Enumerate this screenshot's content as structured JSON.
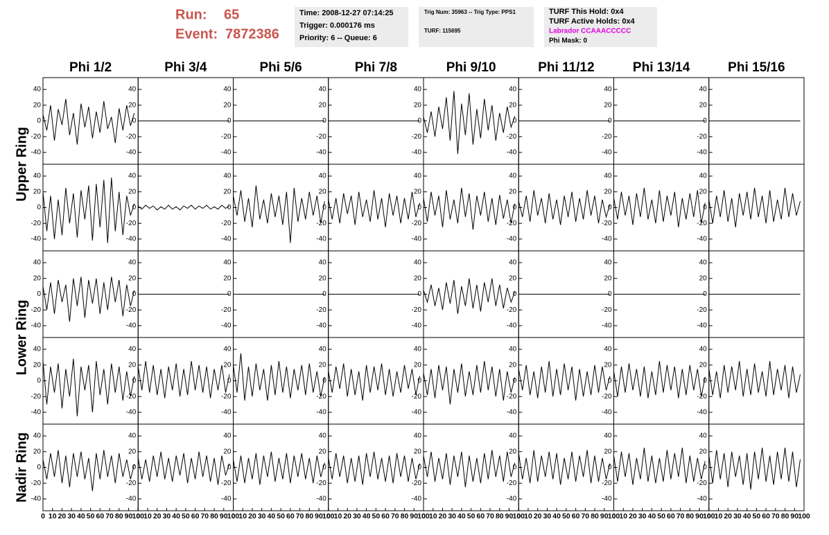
{
  "header": {
    "run_label": "Run:",
    "run": "65",
    "event_label": "Event:",
    "event": "7872386",
    "time": "Time: 2008-12-27 07:14:25",
    "trigger": "Trigger: 0.000176 ms",
    "priority": "Priority: 6 -- Queue: 6",
    "trig_num": "Trig Num: 35963 -- Trig Type: PPS1",
    "turf": "TURF: 115695",
    "turf_this_hold": "TURF This Hold: 0x4",
    "turf_active_holds": "TURF Active Holds: 0x4",
    "labrador": "Labrador CCAAACCCCC",
    "phi_mask": "Phi Mask: 0"
  },
  "chart_data": {
    "type": "line",
    "column_labels": [
      "Phi 1/2",
      "Phi 3/4",
      "Phi 5/6",
      "Phi 7/8",
      "Phi 9/10",
      "Phi 11/12",
      "Phi 13/14",
      "Phi 15/16"
    ],
    "ring_labels": [
      "Upper Ring",
      "Lower Ring",
      "Nadir Ring"
    ],
    "color": "#000000",
    "xlim": [
      0,
      100
    ],
    "xticks": [
      0,
      10,
      20,
      30,
      40,
      50,
      60,
      70,
      80,
      90,
      100
    ],
    "ylim": [
      -55,
      55
    ],
    "yticks": [
      -40,
      -20,
      0,
      20,
      40
    ],
    "x": [
      0,
      4,
      8,
      12,
      16,
      20,
      24,
      28,
      32,
      36,
      40,
      44,
      48,
      52,
      56,
      60,
      64,
      68,
      72,
      76,
      80,
      84,
      88,
      92,
      96
    ],
    "series": [
      {
        "values": [
          8,
          -12,
          20,
          -25,
          15,
          -5,
          28,
          -18,
          10,
          -30,
          22,
          -8,
          18,
          -22,
          12,
          -15,
          25,
          -10,
          5,
          -28,
          16,
          -12,
          20,
          -6,
          10
        ]
      },
      {
        "values": [
          0,
          0,
          0,
          0,
          0,
          0,
          0,
          0,
          0,
          0,
          0,
          0,
          0,
          0,
          0,
          0,
          0,
          0,
          0,
          0,
          0,
          0,
          0,
          0,
          0
        ]
      },
      {
        "values": [
          0,
          0,
          0,
          0,
          0,
          0,
          0,
          0,
          0,
          0,
          0,
          0,
          0,
          0,
          0,
          0,
          0,
          0,
          0,
          0,
          0,
          0,
          0,
          0,
          0
        ]
      },
      {
        "values": [
          0,
          0,
          0,
          0,
          0,
          0,
          0,
          0,
          0,
          0,
          0,
          0,
          0,
          0,
          0,
          0,
          0,
          0,
          0,
          0,
          0,
          0,
          0,
          0,
          0
        ]
      },
      {
        "values": [
          5,
          -15,
          12,
          -20,
          18,
          -10,
          30,
          -25,
          38,
          -42,
          22,
          -18,
          35,
          -30,
          15,
          -22,
          28,
          -12,
          20,
          -25,
          10,
          -15,
          18,
          -8,
          6
        ]
      },
      {
        "values": [
          0,
          0,
          0,
          0,
          0,
          0,
          0,
          0,
          0,
          0,
          0,
          0,
          0,
          0,
          0,
          0,
          0,
          0,
          0,
          0,
          0,
          0,
          0,
          0,
          0
        ]
      },
      {
        "values": [
          0,
          0,
          0,
          0,
          0,
          0,
          0,
          0,
          0,
          0,
          0,
          0,
          0,
          0,
          0,
          0,
          0,
          0,
          0,
          0,
          0,
          0,
          0,
          0,
          0
        ]
      },
      {
        "values": [
          0,
          0,
          0,
          0,
          0,
          0,
          0,
          0,
          0,
          0,
          0,
          0,
          0,
          0,
          0,
          0,
          0,
          0,
          0,
          0,
          0,
          0,
          0,
          0,
          0
        ]
      },
      {
        "values": [
          20,
          -30,
          15,
          -40,
          10,
          -35,
          25,
          -20,
          18,
          -38,
          22,
          -15,
          28,
          -42,
          30,
          -25,
          35,
          -45,
          38,
          -30,
          20,
          -35,
          15,
          -10,
          5
        ]
      },
      {
        "values": [
          2,
          -2,
          3,
          -1,
          2,
          -3,
          1,
          -2,
          3,
          -2,
          1,
          -3,
          2,
          -1,
          3,
          -2,
          2,
          -1,
          3,
          -2,
          1,
          -2,
          3,
          -1,
          2
        ]
      },
      {
        "values": [
          15,
          -10,
          22,
          -18,
          12,
          -25,
          28,
          -15,
          10,
          -20,
          18,
          -12,
          15,
          -22,
          20,
          -45,
          25,
          -18,
          12,
          -15,
          20,
          -10,
          15,
          -20,
          8
        ]
      },
      {
        "values": [
          10,
          -15,
          12,
          -20,
          18,
          -8,
          15,
          -22,
          20,
          -12,
          10,
          -18,
          22,
          -15,
          12,
          -25,
          18,
          -10,
          15,
          -20,
          12,
          -15,
          20,
          -12,
          6
        ]
      },
      {
        "values": [
          12,
          -18,
          20,
          -10,
          15,
          -25,
          22,
          -15,
          10,
          -20,
          25,
          -12,
          18,
          -28,
          15,
          -10,
          20,
          -18,
          12,
          -22,
          16,
          -14,
          10,
          -20,
          5
        ]
      },
      {
        "values": [
          8,
          -12,
          15,
          -18,
          22,
          -10,
          12,
          -20,
          18,
          -15,
          10,
          -22,
          15,
          -12,
          20,
          -18,
          12,
          -15,
          22,
          -10,
          15,
          -20,
          10,
          -12,
          4
        ]
      },
      {
        "values": [
          12,
          -15,
          20,
          -10,
          15,
          -22,
          18,
          -12,
          25,
          -15,
          10,
          -20,
          22,
          -18,
          15,
          -10,
          20,
          -25,
          12,
          -15,
          18,
          -12,
          22,
          -20,
          6
        ]
      },
      {
        "values": [
          10,
          -20,
          15,
          -12,
          22,
          -18,
          12,
          -25,
          18,
          -10,
          20,
          -15,
          25,
          -12,
          15,
          -20,
          22,
          -18,
          10,
          -15,
          25,
          -12,
          18,
          -10,
          8
        ]
      },
      {
        "values": [
          10,
          -20,
          15,
          -25,
          18,
          -10,
          12,
          -35,
          20,
          -15,
          22,
          -30,
          18,
          -12,
          20,
          -25,
          15,
          -20,
          22,
          -10,
          18,
          -28,
          12,
          -15,
          5
        ]
      },
      {
        "values": [
          0,
          0,
          0,
          0,
          0,
          0,
          0,
          0,
          0,
          0,
          0,
          0,
          0,
          0,
          0,
          0,
          0,
          0,
          0,
          0,
          0,
          0,
          0,
          0,
          0
        ]
      },
      {
        "values": [
          0,
          0,
          0,
          0,
          0,
          0,
          0,
          0,
          0,
          0,
          0,
          0,
          0,
          0,
          0,
          0,
          0,
          0,
          0,
          0,
          0,
          0,
          0,
          0,
          0
        ]
      },
      {
        "values": [
          0,
          0,
          0,
          0,
          0,
          0,
          0,
          0,
          0,
          0,
          0,
          0,
          0,
          0,
          0,
          0,
          0,
          0,
          0,
          0,
          0,
          0,
          0,
          0,
          0
        ]
      },
      {
        "values": [
          5,
          -10,
          12,
          -15,
          8,
          -20,
          15,
          -12,
          18,
          -25,
          10,
          -15,
          20,
          -18,
          12,
          -22,
          15,
          -10,
          20,
          -15,
          12,
          -18,
          8,
          -10,
          3
        ]
      },
      {
        "values": [
          0,
          0,
          0,
          0,
          0,
          0,
          0,
          0,
          0,
          0,
          0,
          0,
          0,
          0,
          0,
          0,
          0,
          0,
          0,
          0,
          0,
          0,
          0,
          0,
          0
        ]
      },
      {
        "values": [
          0,
          0,
          0,
          0,
          0,
          0,
          0,
          0,
          0,
          0,
          0,
          0,
          0,
          0,
          0,
          0,
          0,
          0,
          0,
          0,
          0,
          0,
          0,
          0,
          0
        ]
      },
      {
        "values": [
          0,
          0,
          0,
          0,
          0,
          0,
          0,
          0,
          0,
          0,
          0,
          0,
          0,
          0,
          0,
          0,
          0,
          0,
          0,
          0,
          0,
          0,
          0,
          0,
          0
        ]
      },
      {
        "values": [
          25,
          -30,
          18,
          -15,
          22,
          -35,
          15,
          -20,
          28,
          -45,
          18,
          -12,
          20,
          -40,
          25,
          -18,
          15,
          -30,
          22,
          -15,
          18,
          -25,
          12,
          -20,
          6
        ]
      },
      {
        "values": [
          18,
          -12,
          25,
          -15,
          20,
          -18,
          15,
          -22,
          18,
          -12,
          22,
          -20,
          15,
          -18,
          25,
          -12,
          20,
          -15,
          18,
          -22,
          15,
          -12,
          20,
          -15,
          8
        ]
      },
      {
        "values": [
          20,
          -15,
          35,
          -25,
          18,
          -20,
          22,
          -12,
          15,
          -25,
          20,
          -18,
          25,
          -15,
          18,
          -22,
          15,
          -12,
          20,
          -18,
          22,
          -15,
          12,
          -20,
          5
        ]
      },
      {
        "values": [
          12,
          -15,
          18,
          -10,
          22,
          -20,
          15,
          -18,
          12,
          -25,
          20,
          -15,
          18,
          -12,
          22,
          -18,
          15,
          -20,
          12,
          -15,
          20,
          -10,
          15,
          -18,
          6
        ]
      },
      {
        "values": [
          10,
          -18,
          15,
          -22,
          20,
          -12,
          18,
          -30,
          15,
          -15,
          22,
          -20,
          12,
          -18,
          20,
          -15,
          25,
          -12,
          18,
          -20,
          15,
          -25,
          12,
          -15,
          4
        ]
      },
      {
        "values": [
          15,
          -12,
          20,
          -18,
          12,
          -22,
          18,
          -15,
          25,
          -20,
          15,
          -18,
          22,
          -12,
          18,
          -25,
          15,
          -20,
          12,
          -18,
          20,
          -15,
          18,
          -12,
          6
        ]
      },
      {
        "values": [
          12,
          -20,
          18,
          -15,
          22,
          -12,
          15,
          -20,
          18,
          -22,
          12,
          -18,
          25,
          -15,
          20,
          -12,
          18,
          -22,
          15,
          -18,
          20,
          -12,
          15,
          -20,
          5
        ]
      },
      {
        "values": [
          15,
          -18,
          12,
          -22,
          20,
          -15,
          18,
          -12,
          25,
          -20,
          15,
          -18,
          22,
          -15,
          12,
          -20,
          25,
          -18,
          15,
          -12,
          20,
          -22,
          18,
          -15,
          8
        ]
      },
      {
        "values": [
          10,
          -15,
          18,
          -12,
          22,
          -20,
          15,
          -25,
          18,
          -12,
          20,
          -15,
          12,
          -30,
          18,
          -15,
          22,
          -12,
          15,
          -20,
          18,
          -12,
          10,
          -15,
          4
        ]
      },
      {
        "values": [
          12,
          -15,
          10,
          -18,
          15,
          -12,
          20,
          -15,
          12,
          -18,
          15,
          -10,
          18,
          -20,
          12,
          -15,
          20,
          -12,
          15,
          -18,
          12,
          -22,
          15,
          -10,
          5
        ]
      },
      {
        "values": [
          10,
          -18,
          15,
          -20,
          12,
          -15,
          18,
          -22,
          15,
          -12,
          20,
          -18,
          12,
          -15,
          18,
          -20,
          15,
          -12,
          18,
          -15,
          12,
          -20,
          15,
          -12,
          6
        ]
      },
      {
        "values": [
          12,
          -15,
          18,
          -12,
          15,
          -20,
          12,
          -18,
          15,
          -22,
          18,
          -12,
          20,
          -15,
          12,
          -18,
          15,
          -20,
          18,
          -12,
          15,
          -18,
          12,
          -15,
          5
        ]
      },
      {
        "values": [
          15,
          -12,
          20,
          -18,
          12,
          -15,
          18,
          -22,
          15,
          -12,
          20,
          -25,
          15,
          -18,
          12,
          -20,
          18,
          -15,
          22,
          -12,
          15,
          -18,
          20,
          -12,
          6
        ]
      },
      {
        "values": [
          18,
          -15,
          12,
          -20,
          22,
          -18,
          15,
          -12,
          20,
          -15,
          18,
          -22,
          12,
          -15,
          20,
          -18,
          15,
          -12,
          22,
          -20,
          15,
          -18,
          12,
          -15,
          5
        ]
      },
      {
        "values": [
          15,
          -18,
          20,
          -12,
          18,
          -22,
          12,
          -15,
          25,
          -18,
          15,
          -20,
          12,
          -18,
          22,
          -15,
          18,
          -12,
          25,
          -20,
          15,
          -18,
          12,
          -15,
          8
        ]
      },
      {
        "values": [
          15,
          -20,
          22,
          -15,
          18,
          -25,
          20,
          -12,
          15,
          -22,
          18,
          -28,
          20,
          -15,
          25,
          -18,
          15,
          -22,
          20,
          -15,
          25,
          -18,
          20,
          -25,
          10
        ]
      }
    ]
  }
}
